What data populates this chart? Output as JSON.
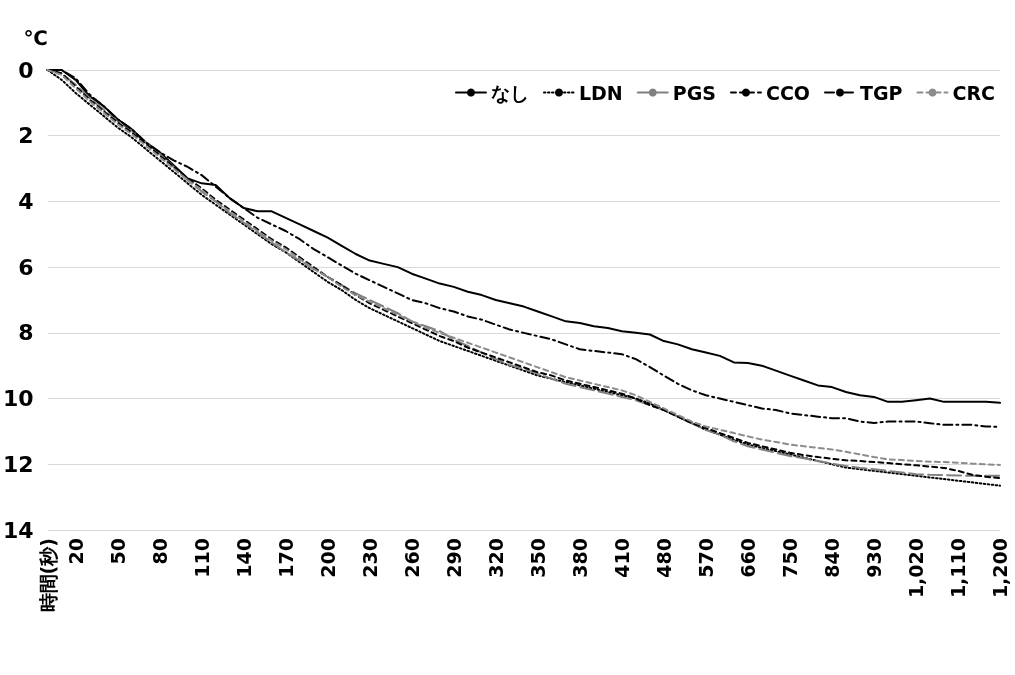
{
  "chart_data": {
    "type": "line",
    "ylabel": "℃",
    "categories": [
      "時間(秒)",
      null,
      "20",
      null,
      null,
      "50",
      null,
      null,
      "80",
      null,
      null,
      "110",
      null,
      null,
      "140",
      null,
      null,
      "170",
      null,
      null,
      "200",
      null,
      null,
      "230",
      null,
      null,
      "260",
      null,
      null,
      "290",
      null,
      null,
      "320",
      null,
      null,
      "350",
      null,
      null,
      "380",
      null,
      null,
      "410",
      null,
      null,
      "480",
      null,
      null,
      "570",
      null,
      null,
      "660",
      null,
      null,
      "750",
      null,
      null,
      "840",
      null,
      null,
      "930",
      null,
      null,
      "1,020",
      null,
      null,
      "1,110",
      null,
      null,
      "1,200"
    ],
    "ylim": [
      14,
      0
    ],
    "yticks": [
      0,
      2,
      4,
      6,
      8,
      10,
      12,
      14
    ],
    "grid": "y",
    "legend": "top right",
    "marker": "none",
    "series": [
      {
        "name": "なし",
        "color": "#000000",
        "line_style": "solid",
        "values": [
          0,
          0,
          0.3,
          0.8,
          1.1,
          1.5,
          1.8,
          2.2,
          2.5,
          2.9,
          3.3,
          3.45,
          3.5,
          3.9,
          4.2,
          4.3,
          4.3,
          4.5,
          4.7,
          4.9,
          5.1,
          5.35,
          5.6,
          5.8,
          5.9,
          6.0,
          6.2,
          6.35,
          6.5,
          6.6,
          6.75,
          6.85,
          7.0,
          7.1,
          7.2,
          7.35,
          7.5,
          7.65,
          7.7,
          7.8,
          7.85,
          7.95,
          8.0,
          8.05,
          8.25,
          8.35,
          8.5,
          8.6,
          8.7,
          8.9,
          8.92,
          9.0,
          9.15,
          9.3,
          9.45,
          9.6,
          9.65,
          9.8,
          9.9,
          9.95,
          10.1,
          10.1,
          10.05,
          10.0,
          10.1,
          10.1,
          10.1,
          10.1,
          10.13
        ]
      },
      {
        "name": "LDN",
        "color": "#000000",
        "line_style": "dotted",
        "values": [
          0,
          0.3,
          0.7,
          1.05,
          1.4,
          1.75,
          2.05,
          2.4,
          2.75,
          3.1,
          3.45,
          3.8,
          4.1,
          4.4,
          4.7,
          5.0,
          5.3,
          5.55,
          5.85,
          6.15,
          6.45,
          6.7,
          7.0,
          7.25,
          7.45,
          7.65,
          7.85,
          8.05,
          8.25,
          8.4,
          8.55,
          8.7,
          8.85,
          9.0,
          9.15,
          9.3,
          9.4,
          9.5,
          9.6,
          9.7,
          9.8,
          9.9,
          10.0,
          10.15,
          10.35,
          10.55,
          10.75,
          10.95,
          11.1,
          11.25,
          11.4,
          11.5,
          11.6,
          11.7,
          11.8,
          11.9,
          12.0,
          12.1,
          12.15,
          12.2,
          12.25,
          12.3,
          12.35,
          12.4,
          12.45,
          12.5,
          12.55,
          12.6,
          12.65
        ]
      },
      {
        "name": "PGS",
        "color": "#808080",
        "line_style": "longdash",
        "values": [
          0,
          0.1,
          0.45,
          0.85,
          1.2,
          1.55,
          1.85,
          2.2,
          2.55,
          2.95,
          3.35,
          3.7,
          4.0,
          4.35,
          4.65,
          4.95,
          5.25,
          5.55,
          5.8,
          6.05,
          6.3,
          6.55,
          6.8,
          7.0,
          7.2,
          7.4,
          7.65,
          7.8,
          7.95,
          8.2,
          8.4,
          8.6,
          8.8,
          8.98,
          9.1,
          9.25,
          9.4,
          9.55,
          9.65,
          9.75,
          9.85,
          9.95,
          10.05,
          10.2,
          10.35,
          10.55,
          10.75,
          10.95,
          11.1,
          11.3,
          11.45,
          11.55,
          11.65,
          11.75,
          11.82,
          11.9,
          11.98,
          12.05,
          12.11,
          12.15,
          12.2,
          12.25,
          12.3,
          12.32,
          12.33,
          12.34,
          12.35,
          12.35,
          12.35
        ]
      },
      {
        "name": "CCO",
        "color": "#000000",
        "line_style": "dashed",
        "values": [
          0,
          0.1,
          0.5,
          0.9,
          1.25,
          1.6,
          1.9,
          2.25,
          2.6,
          2.95,
          3.3,
          3.6,
          3.95,
          4.25,
          4.55,
          4.85,
          5.15,
          5.4,
          5.7,
          6.0,
          6.3,
          6.55,
          6.85,
          7.1,
          7.3,
          7.5,
          7.7,
          7.9,
          8.1,
          8.25,
          8.45,
          8.6,
          8.75,
          8.9,
          9.05,
          9.2,
          9.3,
          9.45,
          9.55,
          9.65,
          9.75,
          9.85,
          10.0,
          10.2,
          10.35,
          10.55,
          10.75,
          10.9,
          11.05,
          11.2,
          11.35,
          11.45,
          11.55,
          11.65,
          11.72,
          11.78,
          11.83,
          11.88,
          11.9,
          11.93,
          11.96,
          12.0,
          12.03,
          12.07,
          12.11,
          12.2,
          12.32,
          12.38,
          12.42
        ]
      },
      {
        "name": "TGP",
        "color": "#000000",
        "line_style": "dashdot",
        "values": [
          0,
          0,
          0.25,
          0.75,
          1.1,
          1.5,
          1.8,
          2.2,
          2.5,
          2.75,
          2.95,
          3.2,
          3.55,
          3.9,
          4.2,
          4.5,
          4.7,
          4.9,
          5.15,
          5.45,
          5.7,
          5.95,
          6.2,
          6.4,
          6.6,
          6.8,
          7.0,
          7.1,
          7.25,
          7.35,
          7.5,
          7.6,
          7.75,
          7.9,
          8.0,
          8.1,
          8.2,
          8.35,
          8.5,
          8.55,
          8.6,
          8.65,
          8.8,
          9.04,
          9.3,
          9.55,
          9.75,
          9.9,
          10.0,
          10.1,
          10.2,
          10.3,
          10.35,
          10.45,
          10.5,
          10.55,
          10.6,
          10.6,
          10.7,
          10.74,
          10.7,
          10.7,
          10.7,
          10.75,
          10.8,
          10.8,
          10.8,
          10.85,
          10.86
        ]
      },
      {
        "name": "CRC",
        "color": "#8c8c8c",
        "line_style": "dashed",
        "values": [
          0,
          0.15,
          0.55,
          0.95,
          1.3,
          1.65,
          1.95,
          2.3,
          2.65,
          3.0,
          3.35,
          3.65,
          4.0,
          4.3,
          4.6,
          4.9,
          5.2,
          5.45,
          5.75,
          6.05,
          6.3,
          6.6,
          6.85,
          7.05,
          7.25,
          7.45,
          7.65,
          7.85,
          8.0,
          8.15,
          8.3,
          8.45,
          8.6,
          8.75,
          8.9,
          9.05,
          9.2,
          9.35,
          9.45,
          9.55,
          9.65,
          9.75,
          9.9,
          10.1,
          10.3,
          10.5,
          10.7,
          10.85,
          10.95,
          11.05,
          11.15,
          11.25,
          11.32,
          11.4,
          11.45,
          11.5,
          11.55,
          11.62,
          11.7,
          11.78,
          11.85,
          11.87,
          11.9,
          11.92,
          11.93,
          11.95,
          11.98,
          12.0,
          12.02
        ]
      }
    ]
  }
}
